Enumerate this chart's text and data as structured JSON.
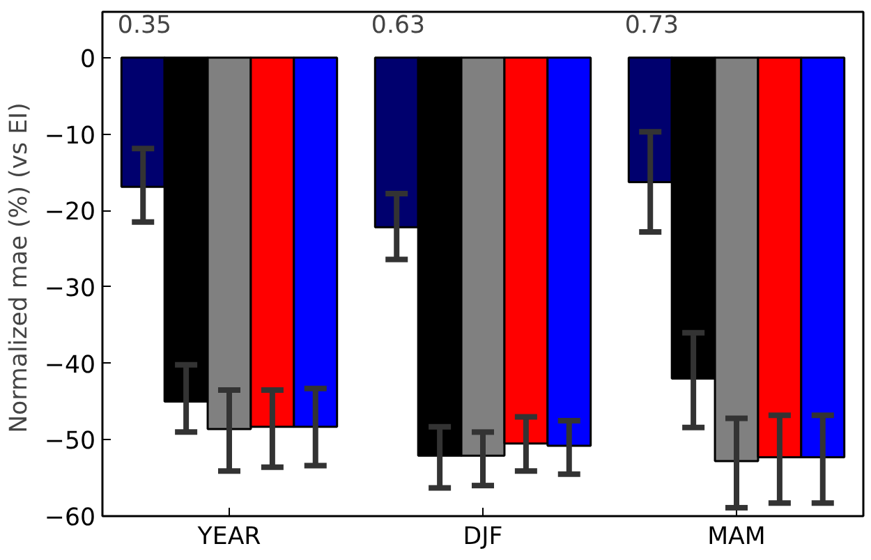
{
  "chart_data": {
    "type": "bar",
    "ylabel": "Normalized mae (%)  (vs EI)",
    "categories": [
      "YEAR",
      "DJF",
      "MAM"
    ],
    "series": [
      {
        "color": "#00006e",
        "values": [
          -16.9,
          -22.2,
          -16.3
        ],
        "errors": [
          [
            -21.5,
            -11.9
          ],
          [
            -26.4,
            -17.8
          ],
          [
            -22.8,
            -9.7
          ]
        ]
      },
      {
        "color": "#000000",
        "values": [
          -45,
          -52.1,
          -42
        ],
        "errors": [
          [
            -49,
            -40.2
          ],
          [
            -56.3,
            -48.3
          ],
          [
            -48.4,
            -36
          ]
        ]
      },
      {
        "color": "#808080",
        "values": [
          -48.6,
          -52.1,
          -52.8
        ],
        "errors": [
          [
            -54.1,
            -43.5
          ],
          [
            -56,
            -49
          ],
          [
            -58.9,
            -47.2
          ]
        ]
      },
      {
        "color": "#ff0000",
        "values": [
          -48.3,
          -50.5,
          -52.3
        ],
        "errors": [
          [
            -53.6,
            -43.5
          ],
          [
            -54.1,
            -47
          ],
          [
            -58.3,
            -46.8
          ]
        ]
      },
      {
        "color": "#0000ff",
        "values": [
          -48.3,
          -50.8,
          -52.3
        ],
        "errors": [
          [
            -53.4,
            -43.3
          ],
          [
            -54.5,
            -47.5
          ],
          [
            -58.3,
            -46.8
          ]
        ]
      }
    ],
    "annotations": [
      "0.35",
      "0.63",
      "0.73"
    ],
    "ylim": [
      -60,
      6
    ],
    "yticks": [
      -60,
      -50,
      -40,
      -30,
      -20,
      -10,
      0
    ],
    "grid": false
  }
}
